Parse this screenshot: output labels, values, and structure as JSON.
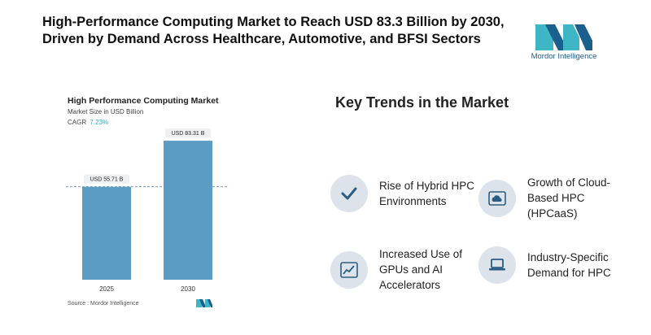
{
  "headline": "High-Performance Computing Market to Reach USD 83.3 Billion by 2030, Driven by Demand Across Healthcare, Automotive, and BFSI Sectors",
  "brand": {
    "name": "Mordor Intelligence",
    "color": "#1b5f8c",
    "accent": "#3fb6c6"
  },
  "chart_data": {
    "type": "bar",
    "title": "High Performance Computing Market",
    "subtitle": "Market Size in USD Billion",
    "cagr_label": "CAGR",
    "cagr_value": "7.23%",
    "categories": [
      "2025",
      "2030"
    ],
    "values": [
      55.71,
      83.31
    ],
    "value_labels": [
      "USD 55.71 B",
      "USD 83.31 B"
    ],
    "ylim": [
      0,
      100
    ],
    "grid": false,
    "legend": "none",
    "bar_color": "#5b9cc4",
    "source": "Source :  Mordor Intelligence"
  },
  "trends": {
    "title": "Key Trends in the Market",
    "items": [
      {
        "label": "Rise of Hybrid HPC Environments",
        "icon": "checkmark-icon"
      },
      {
        "label": "Growth of Cloud-Based HPC (HPCaaS)",
        "icon": "cloud-icon"
      },
      {
        "label": "Increased Use of GPUs and AI Accelerators",
        "icon": "line-chart-icon"
      },
      {
        "label": "Industry-Specific Demand for HPC",
        "icon": "laptop-icon"
      }
    ]
  }
}
